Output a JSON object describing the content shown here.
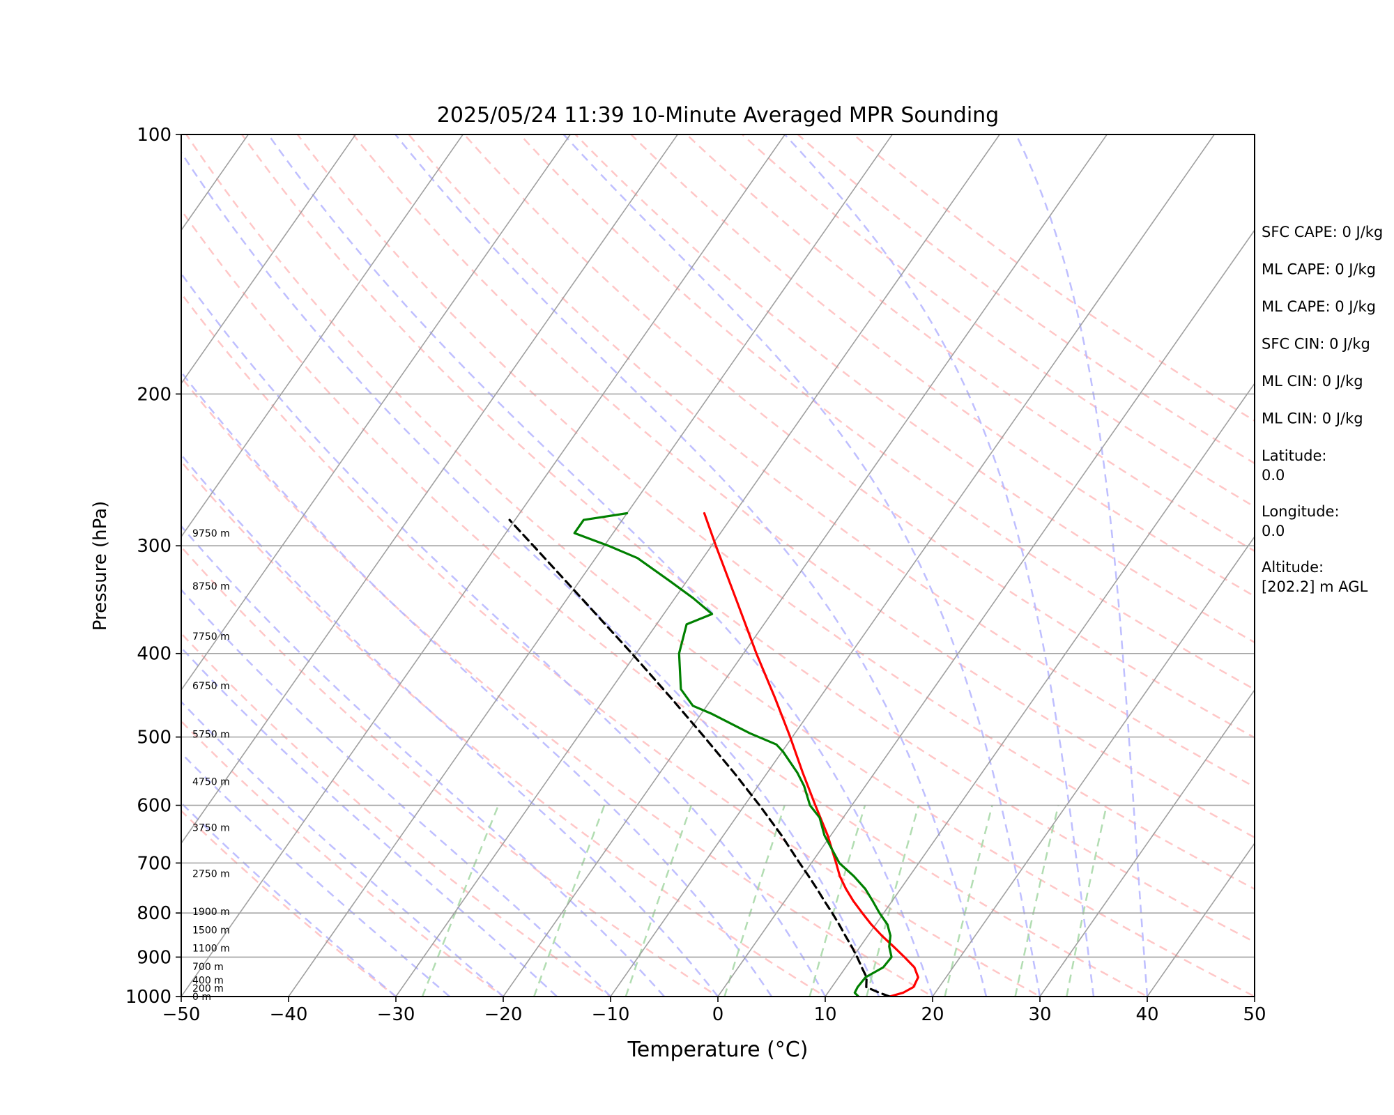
{
  "chart_data": {
    "type": "line",
    "chart_kind": "skew-T log-P diagram",
    "title": "2025/05/24 11:39 10-Minute Averaged MPR Sounding",
    "xlabel": "Temperature (°C)",
    "ylabel": "Pressure (hPa)",
    "xlim": [
      -50,
      50
    ],
    "ylim": [
      1000,
      100
    ],
    "y_scale": "log",
    "x_ticks": [
      -50,
      -40,
      -30,
      -20,
      -10,
      0,
      10,
      20,
      30,
      40,
      50
    ],
    "x_tick_labels": [
      "−50",
      "−40",
      "−30",
      "−20",
      "−10",
      "0",
      "10",
      "20",
      "30",
      "40",
      "50"
    ],
    "y_ticks": [
      100,
      200,
      300,
      400,
      500,
      600,
      700,
      800,
      900,
      1000
    ],
    "y_tick_labels": [
      "100",
      "200",
      "300",
      "400",
      "500",
      "600",
      "700",
      "800",
      "900",
      "1000"
    ],
    "grid": true,
    "colors": {
      "temperature": "#ff0000",
      "dewpoint": "#008000",
      "parcel": "#000000",
      "isotherm": "#a0a0a0",
      "isobar": "#a0a0a0",
      "dry_adiabat": "#ffb4b4",
      "moist_adiabat": "#b4b4ff",
      "mixing_ratio": "#aad9aa"
    },
    "series": [
      {
        "key": "temperature",
        "points": [
          [
            1000,
            16.0
          ],
          [
            990,
            17.0
          ],
          [
            975,
            17.6
          ],
          [
            950,
            17.4
          ],
          [
            925,
            16.4
          ],
          [
            900,
            14.8
          ],
          [
            875,
            13.1
          ],
          [
            850,
            11.3
          ],
          [
            825,
            9.6
          ],
          [
            800,
            8.0
          ],
          [
            775,
            6.4
          ],
          [
            750,
            4.9
          ],
          [
            725,
            3.5
          ],
          [
            700,
            2.3
          ],
          [
            650,
            -0.3
          ],
          [
            600,
            -3.4
          ],
          [
            550,
            -6.7
          ],
          [
            500,
            -10.2
          ],
          [
            450,
            -14.2
          ],
          [
            400,
            -18.8
          ],
          [
            350,
            -23.8
          ],
          [
            300,
            -29.6
          ],
          [
            275,
            -32.8
          ]
        ]
      },
      {
        "key": "dewpoint",
        "points": [
          [
            1000,
            13.1
          ],
          [
            990,
            12.5
          ],
          [
            975,
            12.4
          ],
          [
            950,
            12.5
          ],
          [
            925,
            13.5
          ],
          [
            900,
            13.6
          ],
          [
            875,
            12.7
          ],
          [
            850,
            12.1
          ],
          [
            825,
            11.1
          ],
          [
            800,
            9.6
          ],
          [
            775,
            8.2
          ],
          [
            750,
            6.7
          ],
          [
            725,
            4.8
          ],
          [
            700,
            2.6
          ],
          [
            650,
            -0.6
          ],
          [
            620,
            -2.2
          ],
          [
            600,
            -3.9
          ],
          [
            570,
            -5.7
          ],
          [
            550,
            -7.2
          ],
          [
            520,
            -9.9
          ],
          [
            510,
            -11.0
          ],
          [
            495,
            -14.2
          ],
          [
            470,
            -19.0
          ],
          [
            460,
            -21.3
          ],
          [
            440,
            -23.5
          ],
          [
            400,
            -26.0
          ],
          [
            370,
            -27.2
          ],
          [
            360,
            -25.5
          ],
          [
            345,
            -28.3
          ],
          [
            330,
            -31.5
          ],
          [
            310,
            -36.1
          ],
          [
            300,
            -39.6
          ],
          [
            290,
            -43.6
          ],
          [
            280,
            -43.6
          ],
          [
            275,
            -40.0
          ]
        ]
      },
      {
        "key": "parcel",
        "points": [
          [
            1000,
            16.0
          ],
          [
            990,
            14.8
          ],
          [
            975,
            13.2
          ],
          [
            950,
            12.6
          ],
          [
            925,
            11.5
          ],
          [
            900,
            10.4
          ],
          [
            875,
            9.2
          ],
          [
            850,
            7.9
          ],
          [
            825,
            6.6
          ],
          [
            800,
            5.2
          ],
          [
            775,
            3.7
          ],
          [
            750,
            2.2
          ],
          [
            725,
            0.6
          ],
          [
            700,
            -1.1
          ],
          [
            650,
            -4.6
          ],
          [
            600,
            -8.6
          ],
          [
            550,
            -13.1
          ],
          [
            500,
            -18.2
          ],
          [
            450,
            -23.9
          ],
          [
            400,
            -30.4
          ],
          [
            350,
            -37.9
          ],
          [
            300,
            -46.6
          ],
          [
            280,
            -50.5
          ]
        ]
      }
    ],
    "heights": [
      {
        "label": "0 m",
        "p": 1000
      },
      {
        "label": "200 m",
        "p": 978
      },
      {
        "label": "400 m",
        "p": 957
      },
      {
        "label": "700 m",
        "p": 923
      },
      {
        "label": "1100 m",
        "p": 879
      },
      {
        "label": "1500 m",
        "p": 837
      },
      {
        "label": "1900 m",
        "p": 797
      },
      {
        "label": "2750 m",
        "p": 720
      },
      {
        "label": "3750 m",
        "p": 637
      },
      {
        "label": "4750 m",
        "p": 563
      },
      {
        "label": "5750 m",
        "p": 496
      },
      {
        "label": "6750 m",
        "p": 436
      },
      {
        "label": "7750 m",
        "p": 382
      },
      {
        "label": "8750 m",
        "p": 334
      },
      {
        "label": "9750 m",
        "p": 290
      }
    ],
    "annotations": [
      "SFC CAPE: 0 J/kg",
      "ML CAPE: 0 J/kg",
      "ML CAPE: 0 J/kg",
      "SFC CIN: 0 J/kg",
      "ML CIN: 0 J/kg",
      "ML CIN: 0 J/kg",
      "Latitude:\n0.0",
      "Longitude:\n0.0",
      "Altitude:\n[202.2] m AGL"
    ]
  }
}
